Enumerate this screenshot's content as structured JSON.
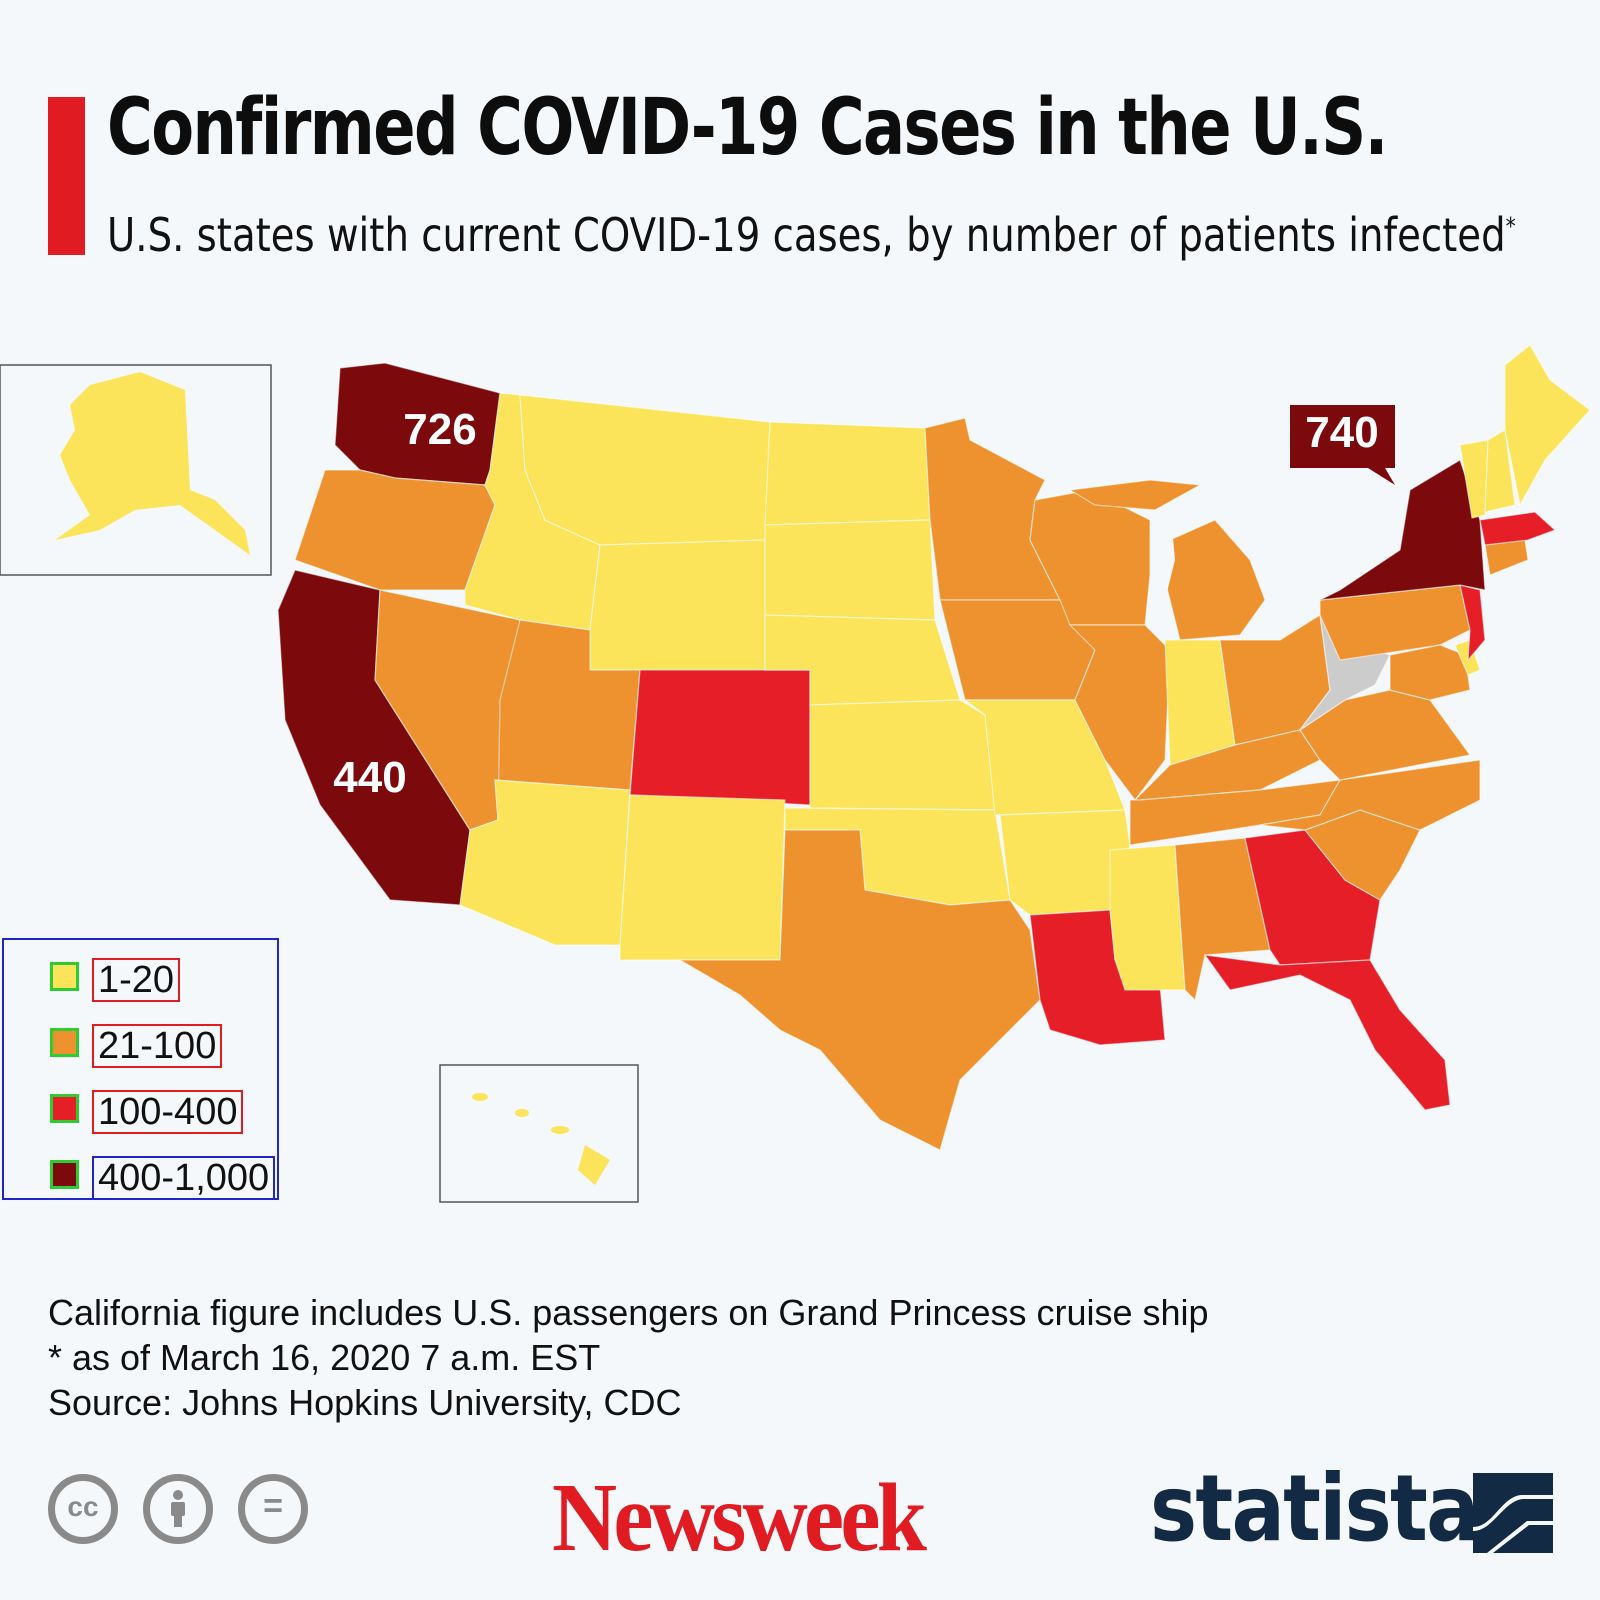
{
  "header": {
    "title": "Confirmed COVID-19 Cases in the U.S.",
    "subtitle": "U.S. states with current COVID-19 cases, by number of patients infected",
    "subtitle_marker": "*",
    "accent_color": "#e01b22"
  },
  "colors": {
    "bin_1_20": "#fbe45a",
    "bin_21_100": "#ee922f",
    "bin_100_400": "#e61e27",
    "bin_400_1000": "#7c0a0c",
    "no_data": "#cccccc"
  },
  "map": {
    "callouts": {
      "washington": "726",
      "new_york": "740",
      "california": "440"
    }
  },
  "legend": {
    "items": [
      {
        "label": "1-20",
        "color": "#fbe45a"
      },
      {
        "label": "21-100",
        "color": "#ee922f"
      },
      {
        "label": "100-400",
        "color": "#e61e27"
      },
      {
        "label": "400-1,000",
        "color": "#7c0a0c"
      }
    ]
  },
  "notes": {
    "line1": "California figure includes U.S. passengers on Grand Princess cruise ship",
    "line2": "* as of March 16, 2020 7 a.m. EST",
    "line3": "Source: Johns Hopkins University, CDC"
  },
  "footer": {
    "cc_label": "cc",
    "equals_label": "=",
    "newsweek": "Newsweek",
    "statista": "statista"
  }
}
